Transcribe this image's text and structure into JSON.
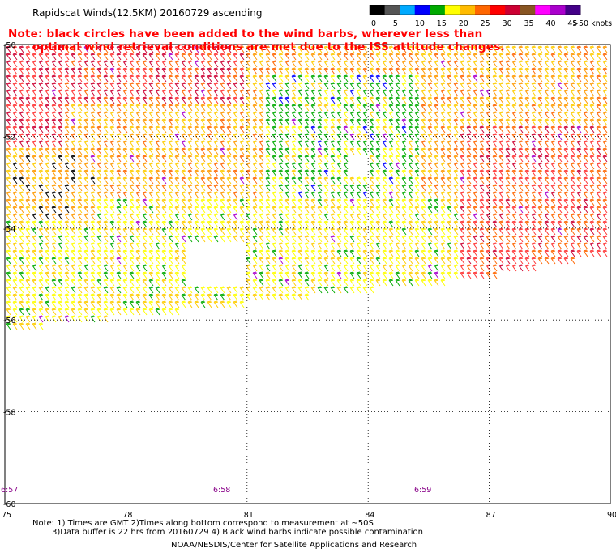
{
  "header": {
    "title": "Rapidscat Winds(12.5KM) 20160729 ascending",
    "note_line1": "Note: black circles have been added to the wind barbs, wherever less than",
    "note_line2": "optimal wind retrieval conditions are met due to the ISS attitude changes."
  },
  "legend": {
    "units": ">50 knots",
    "ticks": [
      "0",
      "5",
      "10",
      "15",
      "20",
      "25",
      "30",
      "35",
      "40",
      "45"
    ],
    "colors": [
      "#000000",
      "#555555",
      "#00aaff",
      "#0000ff",
      "#00aa00",
      "#ffff00",
      "#ffbb00",
      "#ff6600",
      "#ff0000",
      "#cc0033",
      "#885522",
      "#ff00ff",
      "#aa00cc",
      "#440088"
    ]
  },
  "map": {
    "lat_labels": [
      "-50",
      "-52",
      "-54",
      "-56",
      "-58",
      "-60"
    ],
    "lon_labels": [
      "75",
      "78",
      "81",
      "84",
      "87",
      "90"
    ],
    "time_labels": [
      "6:57",
      "6:58",
      "6:59"
    ],
    "time_color": "#880088",
    "lat_range": [
      -60,
      -50
    ],
    "lon_range": [
      75,
      90
    ],
    "swath_color_scale": [
      "#ffff00",
      "#ffcc00",
      "#ff9900",
      "#ff6600",
      "#ff3333",
      "#cc0033",
      "#00aa00",
      "#0000ff",
      "#000000",
      "#aa00cc"
    ]
  },
  "footer": {
    "line1": "Note: 1) Times are GMT 2)Times along bottom correspond to measurement at ~50S",
    "line2": "3)Data buffer is 22 hrs from 20160729 4) Black wind barbs indicate possible contamination",
    "line3": "NOAA/NESDIS/Center for Satellite Applications and Research"
  }
}
